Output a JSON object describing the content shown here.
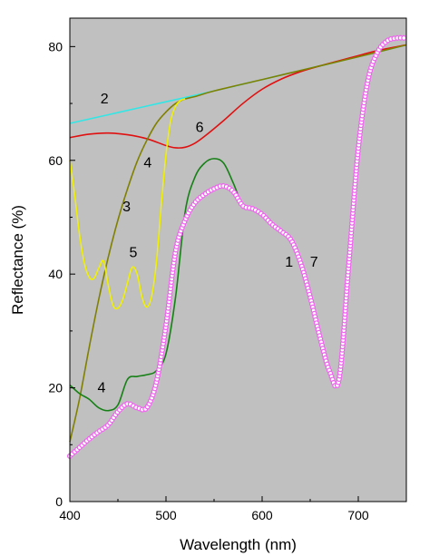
{
  "chart_data": {
    "type": "line",
    "title": "",
    "xlabel": "Wavelength (nm)",
    "ylabel": "Reflectance (%)",
    "xlim": [
      400,
      750
    ],
    "ylim": [
      0,
      85
    ],
    "x_ticks": [
      400,
      500,
      600,
      700
    ],
    "y_ticks": [
      0,
      20,
      40,
      60,
      80
    ],
    "grid": false,
    "legend": "none",
    "plot_background": "#c0c0c0",
    "series": [
      {
        "name": "2",
        "color": "#33e6e6",
        "x": [
          400,
          450,
          500,
          550,
          600,
          650,
          700,
          750
        ],
        "y": [
          66.5,
          68.4,
          70.3,
          72.2,
          74.2,
          76.2,
          78.2,
          80.3
        ]
      },
      {
        "name": "6",
        "color": "#e01010",
        "x": [
          400,
          420,
          440,
          460,
          480,
          500,
          510,
          520,
          530,
          540,
          560,
          580,
          600,
          620,
          640,
          660,
          680,
          700,
          720,
          750
        ],
        "y": [
          64,
          64.6,
          64.8,
          64.5,
          63.8,
          62.6,
          62.2,
          62.3,
          63,
          64.2,
          67,
          70,
          72.5,
          74.3,
          75.6,
          76.6,
          77.5,
          78.4,
          79.3,
          80.3
        ]
      },
      {
        "name": "3",
        "color": "#808000",
        "x": [
          400,
          410,
          420,
          430,
          440,
          450,
          460,
          470,
          480,
          490,
          500,
          510,
          520,
          530,
          550,
          600,
          650,
          700,
          750
        ],
        "y": [
          10.5,
          18,
          27,
          35.5,
          43,
          49.5,
          55,
          59.8,
          63.5,
          66.5,
          68.5,
          70,
          70.8,
          71.2,
          72.2,
          74.2,
          76.2,
          78.2,
          80.3
        ]
      },
      {
        "name": "5",
        "color": "#f0f000",
        "x": [
          400,
          405,
          410,
          415,
          420,
          425,
          430,
          435,
          440,
          445,
          450,
          455,
          460,
          465,
          470,
          475,
          480,
          485,
          490,
          495,
          500,
          505,
          510,
          515,
          520
        ],
        "y": [
          60,
          54,
          47,
          42,
          39.5,
          39.2,
          41,
          42.3,
          38,
          34.5,
          34,
          35.5,
          38.5,
          41.2,
          40,
          36,
          34.2,
          36,
          42,
          52,
          61,
          67,
          69.5,
          70.5,
          70.8
        ]
      },
      {
        "name": "4",
        "color": "#168016",
        "x": [
          400,
          410,
          420,
          430,
          440,
          450,
          460,
          470,
          480,
          490,
          500,
          510,
          520,
          530,
          540,
          550,
          560,
          570,
          580,
          590,
          600,
          610,
          620,
          630,
          640,
          650,
          660,
          670,
          680,
          690,
          700,
          710,
          720,
          730,
          740,
          750
        ],
        "y": [
          20.5,
          19,
          18,
          16.5,
          16,
          17,
          21.5,
          22,
          22.3,
          23,
          26,
          36,
          51,
          57,
          59.5,
          60.3,
          59.5,
          56,
          52,
          51.2,
          50.5,
          49,
          47.8,
          45.5,
          42,
          36,
          29,
          22.5,
          22.5,
          42,
          62,
          74,
          79,
          81,
          81.3,
          81.5
        ]
      },
      {
        "name": "1",
        "color": "#1414cc",
        "x": [
          400,
          410,
          420,
          430,
          440,
          450,
          460,
          470,
          480,
          490,
          500,
          510,
          520,
          530,
          540,
          550,
          560,
          570,
          580,
          590,
          600,
          610,
          620,
          630,
          640,
          650,
          660,
          670,
          680,
          690,
          700,
          710,
          720,
          730,
          740,
          750
        ],
        "y": [
          8,
          9.5,
          11,
          12.3,
          13.5,
          15.8,
          17.2,
          16.5,
          16.5,
          21,
          31,
          44,
          49.5,
          52.5,
          54,
          55,
          55.5,
          54.5,
          52,
          51.5,
          50.5,
          48.8,
          47.5,
          46,
          42,
          36,
          29,
          23,
          21.5,
          41.5,
          62,
          74,
          79,
          81,
          81.5,
          81.5
        ]
      },
      {
        "name": "7",
        "color": "#ee66ee",
        "marker": "circle",
        "x": [
          400,
          410,
          420,
          430,
          440,
          450,
          460,
          470,
          480,
          490,
          500,
          510,
          520,
          530,
          540,
          550,
          560,
          570,
          580,
          590,
          600,
          610,
          620,
          630,
          640,
          650,
          660,
          670,
          680,
          690,
          700,
          710,
          720,
          730,
          740,
          750
        ],
        "y": [
          8,
          9.5,
          11,
          12.3,
          13.5,
          15.8,
          17.2,
          16.5,
          16.5,
          21,
          31,
          44,
          49.5,
          52.5,
          54,
          55,
          55.5,
          54.5,
          52,
          51.5,
          50.5,
          48.8,
          47.5,
          46,
          42,
          36,
          29,
          23,
          21.5,
          41.5,
          62,
          74,
          79,
          81,
          81.5,
          81.5
        ]
      }
    ],
    "annotations": [
      {
        "text": "2",
        "x": 436,
        "y": 70
      },
      {
        "text": "6",
        "x": 535,
        "y": 65
      },
      {
        "text": "3",
        "x": 459,
        "y": 51
      },
      {
        "text": "4",
        "x": 481,
        "y": 58.8
      },
      {
        "text": "5",
        "x": 466,
        "y": 43
      },
      {
        "text": "1",
        "x": 628,
        "y": 41.3
      },
      {
        "text": "7",
        "x": 654,
        "y": 41.3
      },
      {
        "text": "4",
        "x": 433,
        "y": 19.2
      }
    ]
  }
}
